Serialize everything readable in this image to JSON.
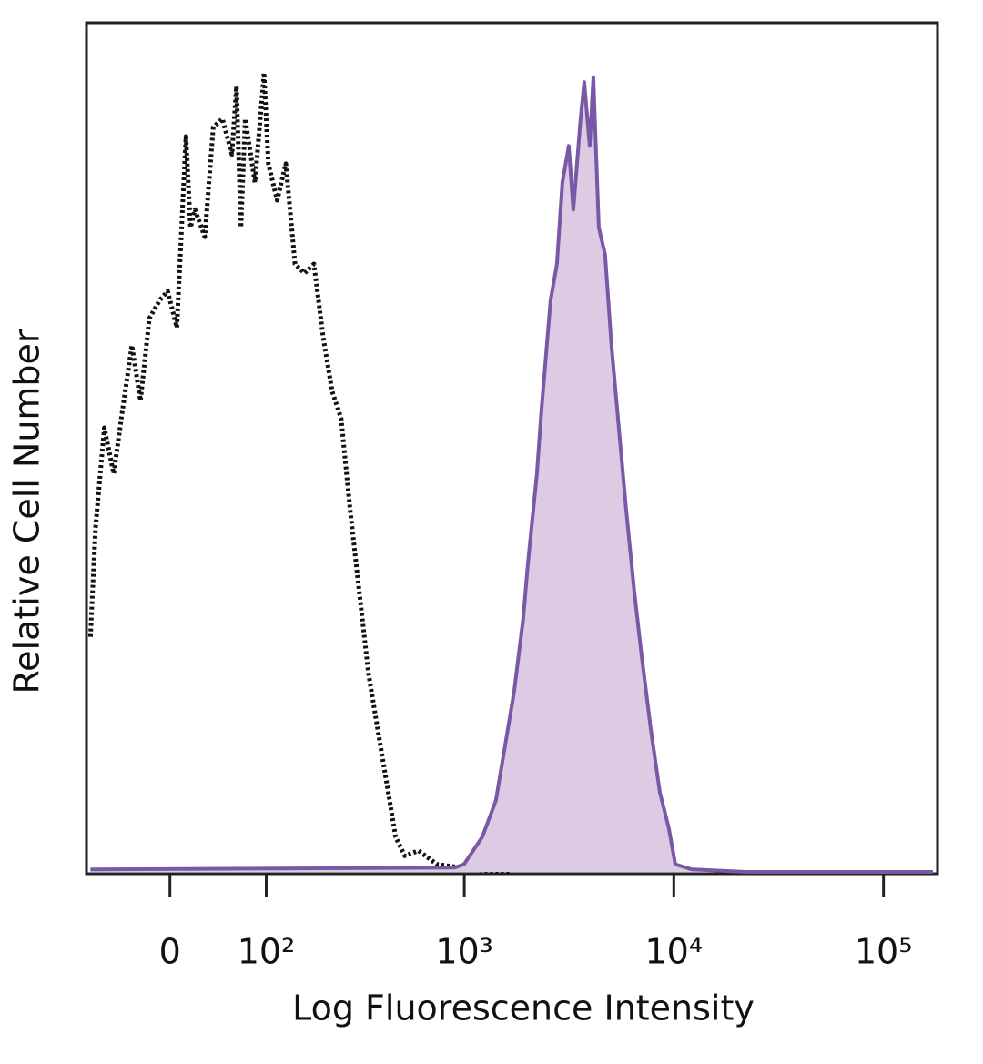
{
  "chart_data": {
    "type": "histogram-overlay",
    "x_label": "Log Fluorescence Intensity",
    "y_label": "Relative Cell Number",
    "xscale": "biexponential",
    "xlim": [
      -83,
      181000
    ],
    "xticks": [
      0,
      {
        "value": 100,
        "label": "10²"
      },
      {
        "value": 1000,
        "label": "10³"
      },
      {
        "value": 10000,
        "label": "10⁴"
      },
      {
        "value": 100000,
        "label": "10⁵"
      }
    ],
    "ylim": [
      0,
      100
    ],
    "series": [
      {
        "color": "#111111",
        "line_style": "dotted",
        "filled": false,
        "x": [
          -78,
          -72,
          -62,
          -52,
          -43,
          -34,
          -26,
          -18,
          -9,
          -2,
          6,
          14,
          18,
          22,
          31,
          39,
          48,
          58,
          63,
          68,
          73,
          85,
          97,
          103,
          116,
          130,
          146,
          164,
          184,
          205,
          228,
          253,
          280,
          311,
          345,
          382,
          423,
          468,
          518,
          603,
          738,
          901,
          1102,
          1646
        ],
        "values": [
          27.7,
          40.5,
          52.3,
          46.9,
          54.4,
          62.0,
          55.5,
          65.2,
          67.3,
          68.4,
          64.1,
          86.6,
          75.9,
          78.0,
          74.8,
          87.7,
          88.7,
          84.5,
          92.5,
          75.9,
          88.7,
          81.2,
          94.1,
          83.4,
          79.1,
          83.4,
          71.6,
          70.5,
          71.6,
          63.0,
          56.6,
          53.4,
          42.7,
          33.0,
          23.4,
          16.9,
          10.5,
          4.1,
          1.9,
          2.5,
          0.9,
          0.6,
          0.3,
          0
        ]
      },
      {
        "color": "#7a58a8",
        "fill": "#dccbe3",
        "line_style": "solid",
        "filled": true,
        "x": [
          -78,
          901,
          997,
          1218,
          1416,
          1565,
          1730,
          1912,
          2011,
          2222,
          2336,
          2582,
          2769,
          2940,
          3153,
          3315,
          3591,
          3737,
          3969,
          4132,
          4386,
          4703,
          5043,
          5466,
          5920,
          6478,
          7018,
          7758,
          8573,
          9472,
          10160,
          12160,
          22160,
          172200
        ],
        "values": [
          0.3,
          0.5,
          0.9,
          4.1,
          8.4,
          14.8,
          21.2,
          29.8,
          36.2,
          46.9,
          54.4,
          67.3,
          71.6,
          81.2,
          85.5,
          78.0,
          88.7,
          93.0,
          85.5,
          93.6,
          75.9,
          72.7,
          62.0,
          52.3,
          42.7,
          33.0,
          25.5,
          16.9,
          9.4,
          5.1,
          0.9,
          0.3,
          0,
          0
        ]
      }
    ]
  }
}
